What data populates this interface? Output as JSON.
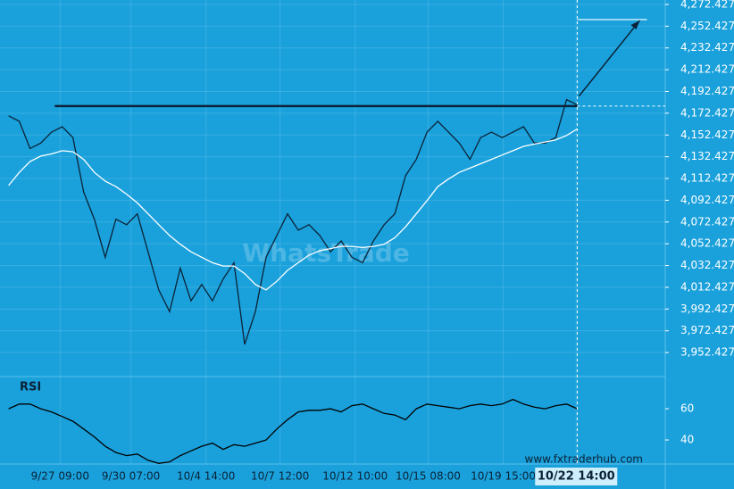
{
  "chart_data": [
    {
      "type": "line",
      "watermark": "WhatsTrade",
      "source": "www.fxtraderhub.com",
      "xlim": [
        -0.8,
        61.2
      ],
      "xticks": [
        {
          "value": 4.8,
          "label": "9/27 09:00"
        },
        {
          "value": 11.4,
          "label": "9/30 07:00"
        },
        {
          "value": 18.4,
          "label": "10/4 14:00"
        },
        {
          "value": 25.3,
          "label": "10/7 12:00"
        },
        {
          "value": 32.3,
          "label": "10/12 10:00"
        },
        {
          "value": 39.1,
          "label": "10/15 08:00"
        },
        {
          "value": 46.1,
          "label": "10/19 15:00"
        },
        {
          "value": 52.9,
          "label": "10/22 14:00"
        }
      ],
      "ylim": [
        3932,
        4276.5
      ],
      "yticks": [
        {
          "value": 4272.4273,
          "label": "4,272.4273"
        },
        {
          "value": 4252.4273,
          "label": "4,252.4273"
        },
        {
          "value": 4232.4273,
          "label": "4,232.4273"
        },
        {
          "value": 4212.4273,
          "label": "4,212.4273"
        },
        {
          "value": 4192.4273,
          "label": "4,192.4273"
        },
        {
          "value": 4172.4273,
          "label": "4,172.4273"
        },
        {
          "value": 4152.4273,
          "label": "4,152.4273"
        },
        {
          "value": 4132.4273,
          "label": "4,132.4273"
        },
        {
          "value": 4112.4273,
          "label": "4,112.4273"
        },
        {
          "value": 4092.4273,
          "label": "4,092.4273"
        },
        {
          "value": 4072.4273,
          "label": "4,072.4273"
        },
        {
          "value": 4052.4273,
          "label": "4,052.4273"
        },
        {
          "value": 4032.4273,
          "label": "4,032.4273"
        },
        {
          "value": 4012.4273,
          "label": "4,012.4273"
        },
        {
          "value": 3992.4273,
          "label": "3,992.4273"
        },
        {
          "value": 3972.4273,
          "label": "3,972.4273"
        },
        {
          "value": 3952.4273,
          "label": "3,952.4273"
        }
      ],
      "grid": true,
      "level": 4179,
      "target": 4258.5,
      "series": [
        {
          "color": "#0b2236",
          "values": [
            4170,
            4165,
            4140,
            4145,
            4155,
            4160,
            4150,
            4100,
            4075,
            4040,
            4075,
            4070,
            4080,
            4045,
            4010,
            3990,
            4030,
            4000,
            4015,
            4000,
            4020,
            4035,
            3960,
            3990,
            4040,
            4060,
            4080,
            4065,
            4070,
            4060,
            4045,
            4055,
            4040,
            4035,
            4055,
            4070,
            4080,
            4115,
            4130,
            4155,
            4165,
            4155,
            4145,
            4130,
            4150,
            4155,
            4150,
            4155,
            4160,
            4145,
            4145,
            4150,
            4185,
            4180
          ]
        },
        {
          "color": "#ffffff",
          "values": [
            4106,
            4118,
            4128,
            4133,
            4135,
            4138,
            4137,
            4130,
            4118,
            4110,
            4105,
            4098,
            4090,
            4080,
            4070,
            4060,
            4052,
            4045,
            4040,
            4035,
            4032,
            4032,
            4025,
            4015,
            4010,
            4018,
            4028,
            4035,
            4042,
            4046,
            4048,
            4050,
            4050,
            4049,
            4050,
            4052,
            4058,
            4068,
            4080,
            4092,
            4105,
            4112,
            4118,
            4122,
            4126,
            4130,
            4134,
            4138,
            4142,
            4144,
            4146,
            4148,
            4152,
            4158
          ]
        }
      ]
    },
    {
      "type": "line",
      "title": "RSI",
      "ylim": [
        24.6,
        78.9
      ],
      "yticks": [
        60,
        40
      ],
      "series": [
        {
          "color": "#000000",
          "values": [
            60,
            63,
            63,
            60,
            58,
            55,
            52,
            47,
            42,
            36,
            32,
            30,
            31,
            27,
            25,
            26,
            30,
            33,
            36,
            38,
            34,
            37,
            36,
            38,
            40,
            47,
            53,
            58,
            59,
            59,
            60,
            58,
            62,
            63,
            60,
            57,
            56,
            53,
            60,
            63,
            62,
            61,
            60,
            62,
            63,
            62,
            63,
            66,
            63,
            61,
            60,
            62,
            63,
            60
          ]
        }
      ]
    }
  ]
}
